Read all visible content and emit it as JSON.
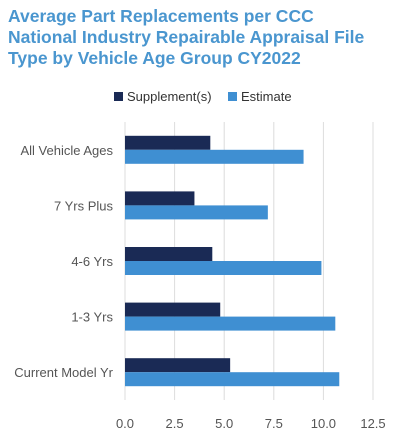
{
  "chart_data": {
    "type": "bar",
    "orientation": "horizontal",
    "title_lines": [
      "Average Part Replacements per CCC",
      "National Industry Repairable Appraisal File",
      "Type by Vehicle Age Group CY2022"
    ],
    "categories": [
      "All Vehicle Ages",
      "7 Yrs Plus",
      "4-6 Yrs",
      "1-3 Yrs",
      "Current Model Yr"
    ],
    "series": [
      {
        "name": "Supplement(s)",
        "color": "#1a2a55",
        "values": [
          4.3,
          3.5,
          4.4,
          4.8,
          5.3
        ]
      },
      {
        "name": "Estimate",
        "color": "#3f8fd2",
        "values": [
          9.0,
          7.2,
          9.9,
          10.6,
          10.8
        ]
      }
    ],
    "xlim": [
      0,
      12.5
    ],
    "xticks": [
      "0.0",
      "2.5",
      "5.0",
      "7.5",
      "10.0",
      "12.5"
    ],
    "grid": true,
    "legend_position": "top"
  }
}
